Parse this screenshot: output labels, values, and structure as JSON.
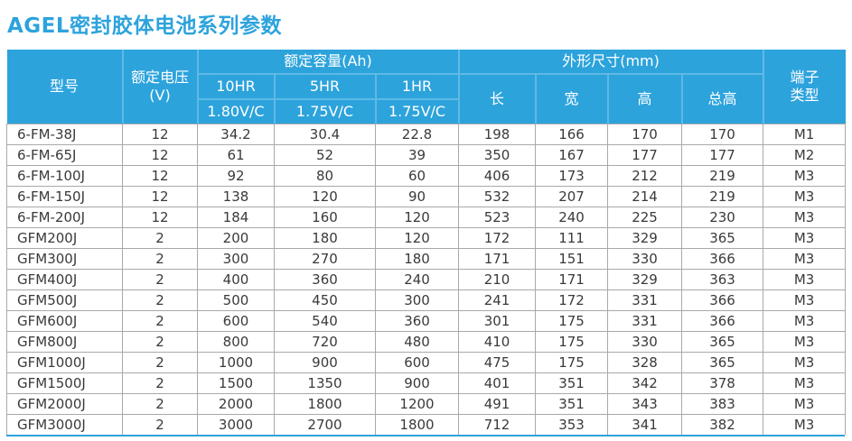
{
  "title": "AGEL密封胶体电池系列参数",
  "colors": {
    "accent_blue": "#2da3dc",
    "header_divider_blue": "#5fb9e5",
    "grid_gray": "#a9a9a9",
    "body_text": "#3a3a3a"
  },
  "table": {
    "headers": {
      "model": "型号",
      "voltage": {
        "line1": "额定电压",
        "line2": "(V)"
      },
      "capacity_group": "额定容量(Ah)",
      "capacity_cols": [
        {
          "rate": "10HR",
          "cutoff": "1.80V/C"
        },
        {
          "rate": "5HR",
          "cutoff": "1.75V/C"
        },
        {
          "rate": "1HR",
          "cutoff": "1.75V/C"
        }
      ],
      "dimensions_group": "外形尺寸(mm)",
      "dimension_cols": [
        "长",
        "宽",
        "高",
        "总高"
      ],
      "terminal": {
        "line1": "端子",
        "line2": "类型"
      }
    },
    "rows": [
      [
        "6-FM-38J",
        "12",
        "34.2",
        "30.4",
        "22.8",
        "198",
        "166",
        "170",
        "170",
        "M1"
      ],
      [
        "6-FM-65J",
        "12",
        "61",
        "52",
        "39",
        "350",
        "167",
        "177",
        "177",
        "M2"
      ],
      [
        "6-FM-100J",
        "12",
        "92",
        "80",
        "60",
        "406",
        "173",
        "212",
        "219",
        "M3"
      ],
      [
        "6-FM-150J",
        "12",
        "138",
        "120",
        "90",
        "532",
        "207",
        "214",
        "219",
        "M3"
      ],
      [
        "6-FM-200J",
        "12",
        "184",
        "160",
        "120",
        "523",
        "240",
        "225",
        "230",
        "M3"
      ],
      [
        "GFM200J",
        "2",
        "200",
        "180",
        "120",
        "172",
        "111",
        "329",
        "365",
        "M3"
      ],
      [
        "GFM300J",
        "2",
        "300",
        "270",
        "180",
        "171",
        "151",
        "330",
        "366",
        "M3"
      ],
      [
        "GFM400J",
        "2",
        "400",
        "360",
        "240",
        "210",
        "171",
        "329",
        "363",
        "M3"
      ],
      [
        "GFM500J",
        "2",
        "500",
        "450",
        "300",
        "241",
        "172",
        "331",
        "366",
        "M3"
      ],
      [
        "GFM600J",
        "2",
        "600",
        "540",
        "360",
        "301",
        "175",
        "331",
        "366",
        "M3"
      ],
      [
        "GFM800J",
        "2",
        "800",
        "720",
        "480",
        "410",
        "175",
        "330",
        "365",
        "M3"
      ],
      [
        "GFM1000J",
        "2",
        "1000",
        "900",
        "600",
        "475",
        "175",
        "328",
        "365",
        "M3"
      ],
      [
        "GFM1500J",
        "2",
        "1500",
        "1350",
        "900",
        "401",
        "351",
        "342",
        "378",
        "M3"
      ],
      [
        "GFM2000J",
        "2",
        "2000",
        "1800",
        "1200",
        "491",
        "351",
        "343",
        "383",
        "M3"
      ],
      [
        "GFM3000J",
        "2",
        "3000",
        "2700",
        "1800",
        "712",
        "353",
        "341",
        "382",
        "M3"
      ]
    ]
  }
}
